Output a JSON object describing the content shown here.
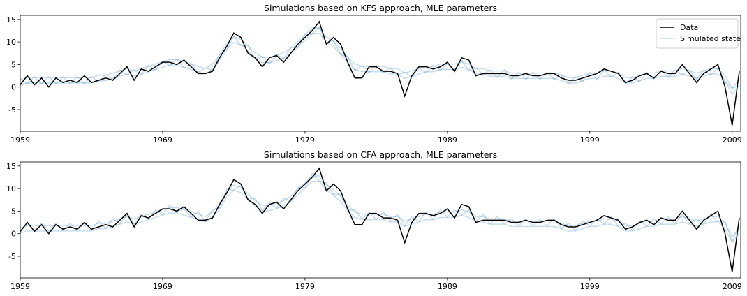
{
  "chart_data": [
    {
      "type": "line",
      "title": "Simulations based on KFS approach, MLE parameters",
      "x": [
        1959,
        1959.5,
        1960,
        1960.5,
        1961,
        1961.5,
        1962,
        1962.5,
        1963,
        1963.5,
        1964,
        1964.5,
        1965,
        1965.5,
        1966,
        1966.5,
        1967,
        1967.5,
        1968,
        1968.5,
        1969,
        1969.5,
        1970,
        1970.5,
        1971,
        1971.5,
        1972,
        1972.5,
        1973,
        1973.5,
        1974,
        1974.5,
        1975,
        1975.5,
        1976,
        1976.5,
        1977,
        1977.5,
        1978,
        1978.5,
        1979,
        1979.5,
        1980,
        1980.5,
        1981,
        1981.5,
        1982,
        1982.5,
        1983,
        1983.5,
        1984,
        1984.5,
        1985,
        1985.5,
        1986,
        1986.5,
        1987,
        1987.5,
        1988,
        1988.5,
        1989,
        1989.5,
        1990,
        1990.5,
        1991,
        1991.5,
        1992,
        1992.5,
        1993,
        1993.5,
        1994,
        1994.5,
        1995,
        1995.5,
        1996,
        1996.5,
        1997,
        1997.5,
        1998,
        1998.5,
        1999,
        1999.5,
        2000,
        2000.5,
        2001,
        2001.5,
        2002,
        2002.5,
        2003,
        2003.5,
        2004,
        2004.5,
        2005,
        2005.5,
        2006,
        2006.5,
        2007,
        2007.5,
        2008,
        2008.5,
        2009,
        2009.5
      ],
      "series": [
        {
          "name": "Data",
          "color": "#000000",
          "values": [
            0.5,
            2.5,
            0.5,
            2.0,
            0.0,
            2.0,
            1.0,
            1.5,
            1.0,
            2.5,
            1.0,
            1.5,
            2.0,
            1.5,
            3.0,
            4.5,
            1.5,
            4.0,
            3.5,
            4.5,
            5.5,
            5.5,
            5.0,
            6.0,
            4.5,
            3.0,
            3.0,
            3.5,
            6.5,
            9.0,
            12.0,
            11.0,
            7.5,
            6.5,
            4.5,
            6.5,
            7.0,
            5.5,
            7.5,
            9.5,
            11.0,
            12.5,
            14.5,
            9.5,
            11.0,
            9.5,
            5.5,
            2.0,
            2.0,
            4.5,
            4.5,
            3.5,
            3.5,
            3.0,
            -2.0,
            2.5,
            4.5,
            4.5,
            4.0,
            4.5,
            5.5,
            3.5,
            6.5,
            6.0,
            2.5,
            3.0,
            3.0,
            3.0,
            3.0,
            2.5,
            2.5,
            3.0,
            2.5,
            2.5,
            3.0,
            3.0,
            2.0,
            1.5,
            1.5,
            2.0,
            2.5,
            3.0,
            4.0,
            3.5,
            3.0,
            1.0,
            1.5,
            2.5,
            3.0,
            2.0,
            3.5,
            3.0,
            3.0,
            5.0,
            3.0,
            1.0,
            3.0,
            4.0,
            5.0,
            0.0,
            -8.5,
            3.5
          ]
        }
      ],
      "simulations": {
        "name": "Simulated state",
        "color": "#1f77b4",
        "alpha": 0.25,
        "runs": [
          [
            1.6,
            2.1,
            2.1,
            2.1,
            2.1,
            2.1,
            2.1,
            2.1,
            2.1,
            2.1,
            2.1,
            2.6,
            2.6,
            3.1,
            3.6,
            4.1,
            3.6,
            4.1,
            4.6,
            5.1,
            5.6,
            6.1,
            6.1,
            5.6,
            5.1,
            4.6,
            4.1,
            5.1,
            7.1,
            9.6,
            11.1,
            10.6,
            9.1,
            7.6,
            6.6,
            6.6,
            7.1,
            7.6,
            8.6,
            10.1,
            11.6,
            13.1,
            13.1,
            11.1,
            10.1,
            8.6,
            6.6,
            5.1,
            4.6,
            4.6,
            4.6,
            4.6,
            4.1,
            4.1,
            3.1,
            3.6,
            4.1,
            4.6,
            4.6,
            5.1,
            5.1,
            5.1,
            5.6,
            5.1,
            4.1,
            4.1,
            3.6,
            3.6,
            3.6,
            3.1,
            3.1,
            3.1,
            3.1,
            3.1,
            3.1,
            3.1,
            2.6,
            2.1,
            2.1,
            2.6,
            3.1,
            3.1,
            3.6,
            3.6,
            3.1,
            2.1,
            2.1,
            2.6,
            3.1,
            3.1,
            3.6,
            3.6,
            3.6,
            4.1,
            3.6,
            3.1,
            3.6,
            4.1,
            4.1,
            2.6,
            -0.4,
            1.6
          ],
          [
            0.4,
            0.9,
            0.9,
            0.9,
            0.9,
            0.9,
            0.9,
            0.9,
            0.9,
            0.9,
            0.9,
            1.4,
            1.4,
            1.9,
            2.4,
            2.9,
            2.4,
            2.9,
            3.4,
            3.9,
            4.4,
            4.9,
            4.9,
            4.4,
            3.9,
            3.4,
            2.9,
            3.9,
            5.9,
            8.4,
            9.9,
            9.4,
            7.9,
            6.4,
            5.4,
            5.4,
            5.9,
            6.4,
            7.4,
            8.9,
            10.4,
            11.9,
            11.9,
            9.9,
            8.9,
            7.4,
            5.4,
            3.9,
            3.4,
            3.4,
            3.4,
            3.4,
            2.9,
            2.9,
            1.9,
            2.4,
            2.9,
            3.4,
            3.4,
            3.9,
            3.9,
            3.9,
            4.4,
            3.9,
            2.9,
            2.9,
            2.4,
            2.4,
            2.4,
            1.9,
            1.9,
            1.9,
            1.9,
            1.9,
            1.9,
            1.9,
            1.4,
            0.9,
            0.9,
            1.4,
            1.9,
            1.9,
            2.4,
            2.4,
            1.9,
            0.9,
            0.9,
            1.4,
            1.9,
            1.9,
            2.4,
            2.4,
            2.4,
            2.9,
            2.4,
            1.9,
            2.4,
            2.9,
            2.9,
            1.4,
            -1.6,
            0.4
          ],
          [
            1.8,
            0.7,
            2.3,
            0.7,
            2.3,
            0.7,
            2.3,
            0.7,
            2.3,
            0.7,
            2.3,
            1.2,
            2.8,
            1.7,
            3.8,
            2.7,
            3.8,
            2.7,
            4.8,
            3.7,
            5.8,
            4.7,
            6.3,
            4.2,
            5.3,
            3.2,
            4.3,
            3.7,
            7.3,
            8.2,
            11.3,
            9.2,
            9.3,
            6.2,
            6.8,
            5.2,
            7.3,
            6.2,
            8.8,
            8.7,
            11.8,
            11.7,
            13.3,
            9.7,
            10.3,
            7.2,
            6.8,
            3.7,
            4.8,
            3.2,
            4.8,
            3.2,
            4.3,
            2.7,
            3.3,
            2.2,
            4.3,
            3.2,
            4.8,
            3.7,
            5.3,
            3.7,
            5.8,
            3.7,
            4.3,
            2.7,
            3.8,
            2.2,
            3.8,
            1.7,
            3.3,
            1.7,
            3.3,
            1.7,
            3.3,
            1.7,
            2.8,
            0.7,
            2.3,
            1.2,
            3.3,
            1.7,
            3.8,
            2.2,
            3.3,
            0.7,
            2.3,
            1.2,
            3.3,
            1.7,
            3.8,
            2.2,
            3.8,
            2.7,
            3.8,
            1.7,
            3.8,
            2.7,
            4.3,
            1.2,
            -0.2,
            0.2
          ]
        ]
      },
      "xlim": [
        1959,
        2009.6
      ],
      "ylim": [
        -9.8,
        15.9
      ],
      "xticks": [
        1959,
        1969,
        1979,
        1989,
        1999,
        2009
      ],
      "yticks": [
        -5,
        0,
        5,
        10,
        15
      ],
      "legend": "upper right"
    },
    {
      "type": "line",
      "title": "Simulations based on CFA approach, MLE parameters",
      "x": [
        1959,
        1959.5,
        1960,
        1960.5,
        1961,
        1961.5,
        1962,
        1962.5,
        1963,
        1963.5,
        1964,
        1964.5,
        1965,
        1965.5,
        1966,
        1966.5,
        1967,
        1967.5,
        1968,
        1968.5,
        1969,
        1969.5,
        1970,
        1970.5,
        1971,
        1971.5,
        1972,
        1972.5,
        1973,
        1973.5,
        1974,
        1974.5,
        1975,
        1975.5,
        1976,
        1976.5,
        1977,
        1977.5,
        1978,
        1978.5,
        1979,
        1979.5,
        1980,
        1980.5,
        1981,
        1981.5,
        1982,
        1982.5,
        1983,
        1983.5,
        1984,
        1984.5,
        1985,
        1985.5,
        1986,
        1986.5,
        1987,
        1987.5,
        1988,
        1988.5,
        1989,
        1989.5,
        1990,
        1990.5,
        1991,
        1991.5,
        1992,
        1992.5,
        1993,
        1993.5,
        1994,
        1994.5,
        1995,
        1995.5,
        1996,
        1996.5,
        1997,
        1997.5,
        1998,
        1998.5,
        1999,
        1999.5,
        2000,
        2000.5,
        2001,
        2001.5,
        2002,
        2002.5,
        2003,
        2003.5,
        2004,
        2004.5,
        2005,
        2005.5,
        2006,
        2006.5,
        2007,
        2007.5,
        2008,
        2008.5,
        2009,
        2009.5
      ],
      "series": [
        {
          "color": "#000000",
          "values": [
            0.5,
            2.5,
            0.5,
            2.0,
            0.0,
            2.0,
            1.0,
            1.5,
            1.0,
            2.5,
            1.0,
            1.5,
            2.0,
            1.5,
            3.0,
            4.5,
            1.5,
            4.0,
            3.5,
            4.5,
            5.5,
            5.5,
            5.0,
            6.0,
            4.5,
            3.0,
            3.0,
            3.5,
            6.5,
            9.0,
            12.0,
            11.0,
            7.5,
            6.5,
            4.5,
            6.5,
            7.0,
            5.5,
            7.5,
            9.5,
            11.0,
            12.5,
            14.5,
            9.5,
            11.0,
            9.5,
            5.5,
            2.0,
            2.0,
            4.5,
            4.5,
            3.5,
            3.5,
            3.0,
            -2.0,
            2.5,
            4.5,
            4.5,
            4.0,
            4.5,
            5.5,
            3.5,
            6.5,
            6.0,
            2.5,
            3.0,
            3.0,
            3.0,
            3.0,
            2.5,
            2.5,
            3.0,
            2.5,
            2.5,
            3.0,
            3.0,
            2.0,
            1.5,
            1.5,
            2.0,
            2.5,
            3.0,
            4.0,
            3.5,
            3.0,
            1.0,
            1.5,
            2.5,
            3.0,
            2.0,
            3.5,
            3.0,
            3.0,
            5.0,
            3.0,
            1.0,
            3.0,
            4.0,
            5.0,
            0.0,
            -8.5,
            3.5
          ]
        }
      ],
      "simulations": {
        "color": "#1f77b4",
        "alpha": 0.25,
        "runs": [
          [
            0.2,
            2.3,
            0.7,
            2.3,
            0.7,
            2.3,
            0.7,
            2.3,
            0.7,
            2.3,
            0.7,
            2.8,
            1.2,
            3.3,
            2.2,
            4.3,
            2.2,
            4.3,
            3.2,
            5.3,
            4.2,
            6.3,
            4.7,
            5.8,
            3.7,
            4.8,
            2.7,
            5.3,
            5.7,
            9.8,
            9.7,
            10.8,
            7.7,
            7.8,
            5.2,
            6.8,
            5.7,
            7.8,
            7.2,
            10.3,
            10.2,
            13.3,
            11.7,
            11.3,
            8.7,
            8.8,
            5.2,
            5.3,
            3.2,
            4.8,
            3.2,
            4.8,
            2.7,
            4.3,
            1.7,
            3.8,
            2.7,
            4.8,
            3.2,
            5.3,
            3.7,
            5.3,
            4.2,
            5.3,
            2.7,
            4.3,
            2.2,
            3.8,
            2.2,
            3.3,
            1.7,
            3.3,
            1.7,
            3.3,
            1.7,
            3.3,
            1.2,
            2.3,
            0.7,
            2.8,
            1.7,
            3.3,
            2.2,
            3.8,
            1.7,
            2.3,
            0.7,
            2.8,
            1.7,
            3.3,
            2.2,
            3.8,
            2.2,
            4.3,
            2.2,
            3.3,
            2.2,
            4.3,
            2.7,
            2.8,
            -1.8,
            1.8
          ],
          [
            1.3,
            1.8,
            1.8,
            1.8,
            1.8,
            1.8,
            1.8,
            1.8,
            1.8,
            1.8,
            1.8,
            2.3,
            2.3,
            2.8,
            3.3,
            3.8,
            3.3,
            3.8,
            4.3,
            4.8,
            5.3,
            5.8,
            5.8,
            5.3,
            4.8,
            4.3,
            3.8,
            4.8,
            6.8,
            9.3,
            10.8,
            10.3,
            8.8,
            7.3,
            6.3,
            6.3,
            6.8,
            7.3,
            8.3,
            9.8,
            11.3,
            12.8,
            12.8,
            10.8,
            9.8,
            8.3,
            6.3,
            4.8,
            4.3,
            4.3,
            4.3,
            4.3,
            3.8,
            3.8,
            2.8,
            3.3,
            3.8,
            4.3,
            4.3,
            4.8,
            4.8,
            4.8,
            5.3,
            4.8,
            3.8,
            3.8,
            3.3,
            3.3,
            3.3,
            2.8,
            2.8,
            2.8,
            2.8,
            2.8,
            2.8,
            2.8,
            2.3,
            1.8,
            1.8,
            2.3,
            2.8,
            2.8,
            3.3,
            3.3,
            2.8,
            1.8,
            1.8,
            2.3,
            2.8,
            2.8,
            3.3,
            3.3,
            3.3,
            3.8,
            3.3,
            2.8,
            3.3,
            3.8,
            3.8,
            2.3,
            -0.7,
            1.3
          ],
          [
            0.1,
            0.6,
            0.6,
            0.6,
            0.6,
            0.6,
            0.6,
            0.6,
            0.6,
            0.6,
            0.6,
            1.1,
            1.1,
            1.6,
            2.1,
            2.6,
            2.1,
            2.6,
            3.1,
            3.6,
            4.1,
            4.6,
            4.6,
            4.1,
            3.6,
            3.1,
            2.6,
            3.6,
            5.6,
            8.1,
            9.6,
            9.1,
            7.6,
            6.1,
            5.1,
            5.1,
            5.6,
            6.1,
            7.1,
            8.6,
            10.1,
            11.6,
            11.6,
            9.6,
            8.6,
            7.1,
            5.1,
            3.6,
            3.1,
            3.1,
            3.1,
            3.1,
            2.6,
            2.6,
            1.6,
            2.1,
            2.6,
            3.1,
            3.1,
            3.6,
            3.6,
            3.6,
            4.1,
            3.6,
            2.6,
            2.6,
            2.1,
            2.1,
            2.1,
            1.6,
            1.6,
            1.6,
            1.6,
            1.6,
            1.6,
            1.6,
            1.1,
            0.6,
            0.6,
            1.1,
            1.6,
            1.6,
            2.1,
            2.1,
            1.6,
            0.6,
            0.6,
            1.1,
            1.6,
            1.6,
            2.1,
            2.1,
            2.1,
            2.6,
            2.1,
            1.6,
            2.1,
            2.6,
            2.6,
            1.1,
            -1.9,
            0.1
          ]
        ]
      },
      "xlim": [
        1959,
        2009.6
      ],
      "ylim": [
        -9.8,
        15.9
      ],
      "xticks": [
        1959,
        1969,
        1979,
        1989,
        1999,
        2009
      ],
      "yticks": [
        -5,
        0,
        5,
        10,
        15
      ]
    }
  ]
}
